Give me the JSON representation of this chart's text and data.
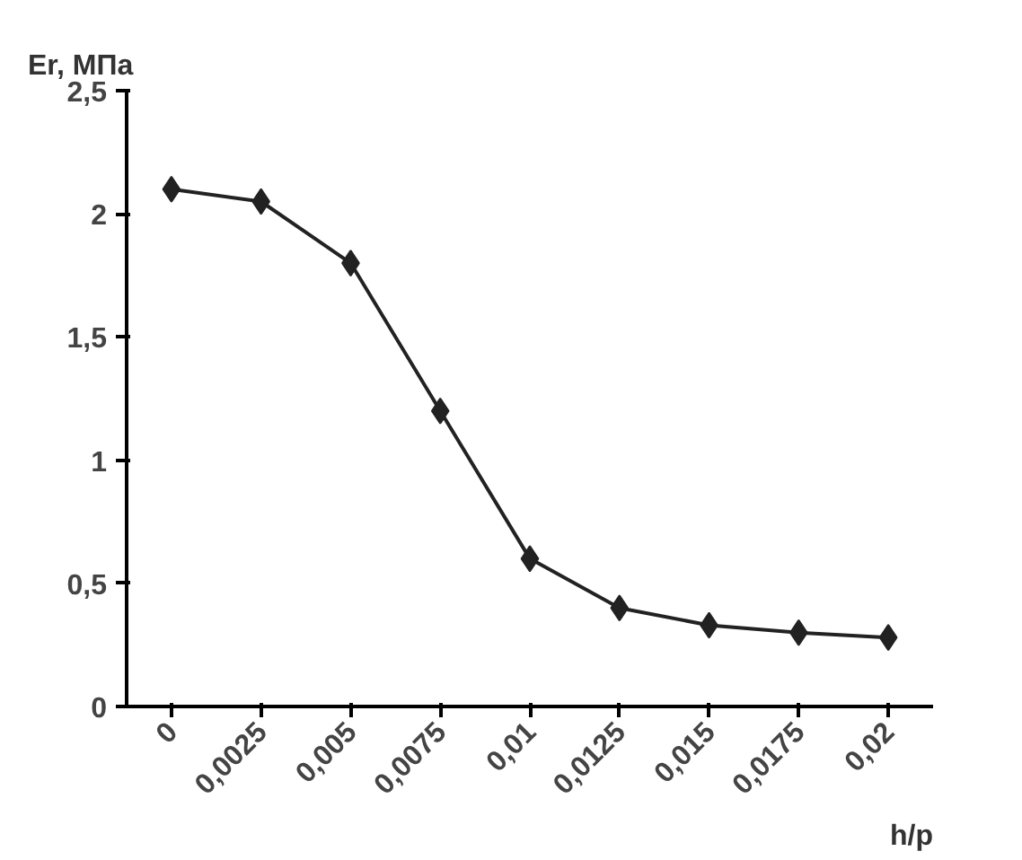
{
  "chart_data": {
    "type": "line",
    "xlabel": "h/p",
    "ylabel": "Er, МПа",
    "categories": [
      "0",
      "0,0025",
      "0,005",
      "0,0075",
      "0,01",
      "0,0125",
      "0,015",
      "0,0175",
      "0,02"
    ],
    "series": [
      {
        "color": "#222222",
        "values": [
          2.1,
          2.05,
          1.8,
          1.2,
          0.6,
          0.4,
          0.33,
          0.3,
          0.28
        ]
      }
    ],
    "ylim": [
      0,
      2.5
    ],
    "yticks": [
      0,
      {
        "value": 0.5,
        "label": "0,5"
      },
      1,
      {
        "value": 1.5,
        "label": "1,5"
      },
      2,
      {
        "value": 2.5,
        "label": "2,5"
      }
    ],
    "grid": false,
    "marker": "diamond",
    "line_style": "solid"
  }
}
